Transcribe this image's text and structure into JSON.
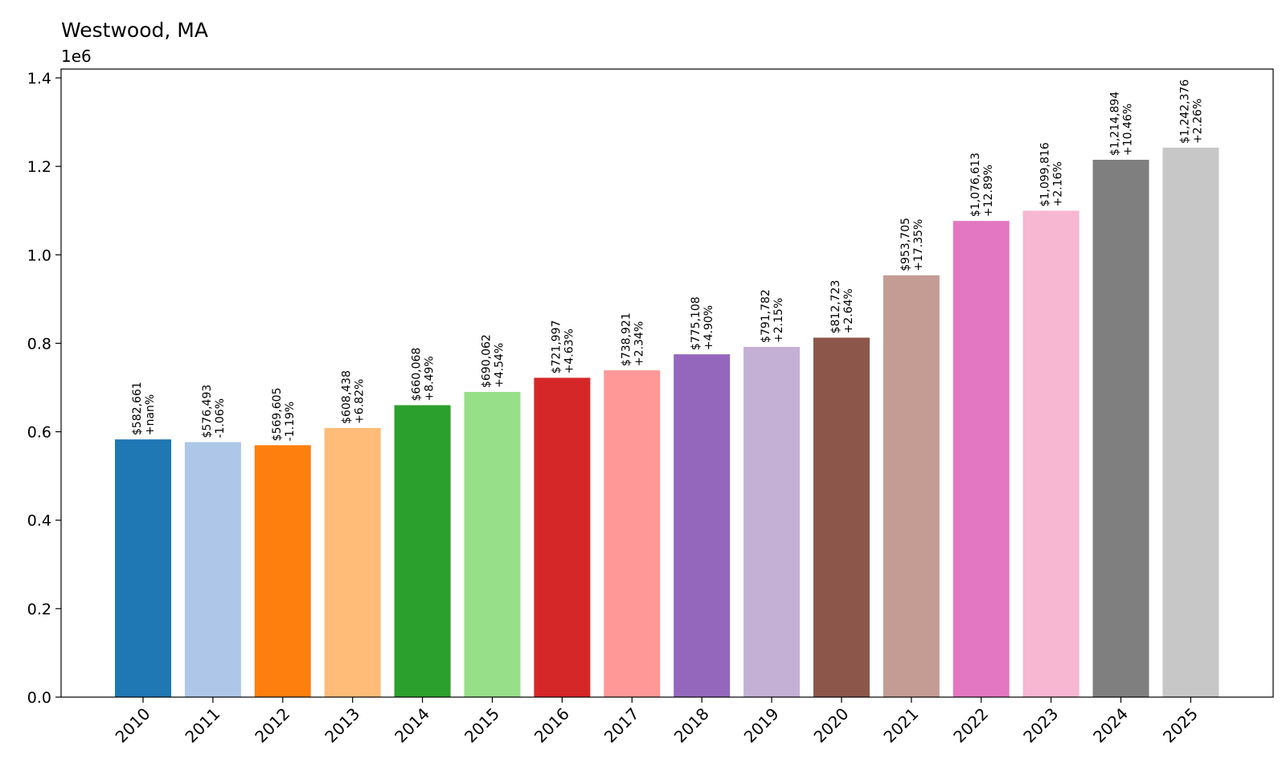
{
  "chart_data": {
    "type": "bar",
    "title": "Westwood, MA",
    "xlabel": "",
    "ylabel": "",
    "y_offset_text": "1e6",
    "ylim": [
      0,
      1.42
    ],
    "y_ticks": [
      "0.0",
      "0.2",
      "0.4",
      "0.6",
      "0.8",
      "1.0",
      "1.2",
      "1.4"
    ],
    "y_tick_values": [
      0,
      0.2,
      0.4,
      0.6,
      0.8,
      1.0,
      1.2,
      1.4
    ],
    "grid": false,
    "categories": [
      "2010",
      "2011",
      "2012",
      "2013",
      "2014",
      "2015",
      "2016",
      "2017",
      "2018",
      "2019",
      "2020",
      "2021",
      "2022",
      "2023",
      "2024",
      "2025"
    ],
    "values": [
      582661,
      576493,
      569605,
      608438,
      660068,
      690062,
      721997,
      738921,
      775108,
      791782,
      812723,
      953705,
      1076613,
      1099816,
      1214894,
      1242376
    ],
    "value_labels": [
      "$582,661",
      "$576,493",
      "$569,605",
      "$608,438",
      "$660,068",
      "$690,062",
      "$721,997",
      "$738,921",
      "$775,108",
      "$791,782",
      "$812,723",
      "$953,705",
      "$1,076,613",
      "$1,099,816",
      "$1,214,894",
      "$1,242,376"
    ],
    "change_labels": [
      "+nan%",
      "-1.06%",
      "-1.19%",
      "+6.82%",
      "+8.49%",
      "+4.54%",
      "+4.63%",
      "+2.34%",
      "+4.90%",
      "+2.15%",
      "+2.64%",
      "+17.35%",
      "+12.89%",
      "+2.16%",
      "+10.46%",
      "+2.26%"
    ],
    "colors": [
      "#1f77b4",
      "#aec7e8",
      "#ff7f0e",
      "#ffbb78",
      "#2ca02c",
      "#98df8a",
      "#d62728",
      "#ff9896",
      "#9467bd",
      "#c5b0d5",
      "#8c564b",
      "#c49c94",
      "#e377c2",
      "#f7b6d2",
      "#7f7f7f",
      "#c7c7c7"
    ]
  }
}
